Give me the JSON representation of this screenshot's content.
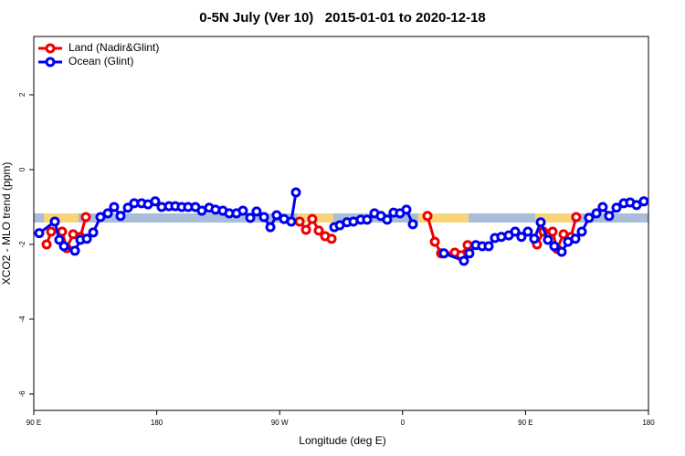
{
  "chart_data": {
    "type": "line",
    "title": "0-5N July (Ver 10)   2015-01-01 to 2020-12-18",
    "x_label": "Longitude (deg E)",
    "y_label": "XCO2 - MLO trend (ppm)",
    "xlim": [
      90,
      540
    ],
    "ylim": [
      -6.44,
      3.56
    ],
    "xticks": [
      {
        "value": 90,
        "label": "90 E"
      },
      180,
      {
        "value": 270,
        "label": "90 W"
      },
      {
        "value": 360,
        "label": "0"
      },
      {
        "value": 450,
        "label": "90 E"
      },
      {
        "value": 540,
        "label": "180"
      }
    ],
    "yticks": [
      2,
      0,
      -2,
      -4,
      -6
    ],
    "legend": "top-left",
    "series": [
      {
        "name": "Land (Nadir&Glint)",
        "color": "#ee0000",
        "x": [
          99.4,
          102.7,
          110.7,
          114.1,
          118.8,
          124.1,
          128.1,
          null,
          284.6,
          289.3,
          293.9,
          298.6,
          303.3,
          308.0,
          null,
          378.2,
          383.6,
          388.2,
          398.2,
          402.9,
          407.6,
          null,
          458.4,
          463.1,
          469.8,
          473.1,
          477.8,
          483.2,
          487.1
        ],
        "values": [
          -2.0,
          -1.66,
          -1.66,
          -2.1,
          -1.73,
          -1.8,
          -1.27,
          null,
          -1.39,
          -1.61,
          -1.32,
          -1.63,
          -1.78,
          -1.85,
          null,
          -1.24,
          -1.93,
          -2.24,
          -2.22,
          -2.29,
          -2.02,
          null,
          -2.0,
          -1.66,
          -1.66,
          -2.12,
          -1.73,
          -1.8,
          -1.27
        ]
      },
      {
        "name": "Ocean (Glint)",
        "color": "#0000ee",
        "x": [
          94.0,
          105.4,
          108.7,
          112.1,
          120.1,
          124.1,
          128.8,
          133.5,
          138.8,
          144.2,
          148.8,
          153.5,
          158.9,
          163.5,
          168.9,
          173.6,
          178.9,
          183.6,
          189.0,
          193.6,
          198.3,
          203.0,
          208.3,
          213.0,
          218.4,
          223.0,
          228.4,
          233.1,
          238.4,
          243.1,
          248.5,
          253.1,
          258.5,
          263.2,
          267.8,
          273.2,
          278.5,
          281.9,
          null,
          310.0,
          314.0,
          319.3,
          324.0,
          329.4,
          334.0,
          339.4,
          344.1,
          348.7,
          353.4,
          358.1,
          362.8,
          367.5,
          null,
          390.2,
          404.9,
          408.9,
          413.6,
          418.3,
          423.0,
          427.6,
          432.3,
          437.7,
          442.4,
          447.0,
          451.7,
          456.4,
          461.1,
          466.4,
          471.1,
          476.5,
          481.1,
          486.5,
          491.2,
          496.5,
          501.9,
          506.5,
          511.2,
          516.6,
          521.9,
          526.6,
          531.3,
          536.6
        ],
        "values": [
          -1.7,
          -1.39,
          -1.88,
          -2.05,
          -2.17,
          -1.88,
          -1.85,
          -1.68,
          -1.27,
          -1.17,
          -1.0,
          -1.24,
          -1.02,
          -0.9,
          -0.9,
          -0.93,
          -0.85,
          -1.0,
          -0.98,
          -0.98,
          -1.0,
          -1.0,
          -1.0,
          -1.1,
          -1.02,
          -1.07,
          -1.1,
          -1.17,
          -1.17,
          -1.1,
          -1.29,
          -1.12,
          -1.27,
          -1.54,
          -1.22,
          -1.32,
          -1.39,
          -0.61,
          null,
          -1.54,
          -1.49,
          -1.41,
          -1.39,
          -1.34,
          -1.34,
          -1.17,
          -1.24,
          -1.34,
          -1.15,
          -1.17,
          -1.07,
          -1.46,
          null,
          -2.24,
          -2.44,
          -2.24,
          -2.02,
          -2.05,
          -2.05,
          -1.83,
          -1.8,
          -1.76,
          -1.66,
          -1.8,
          -1.66,
          -1.85,
          -1.41,
          -1.88,
          -2.05,
          -2.2,
          -1.93,
          -1.85,
          -1.66,
          -1.29,
          -1.17,
          -1.0,
          -1.24,
          -1.02,
          -0.9,
          -0.88,
          -0.95,
          -0.85
        ]
      }
    ]
  }
}
